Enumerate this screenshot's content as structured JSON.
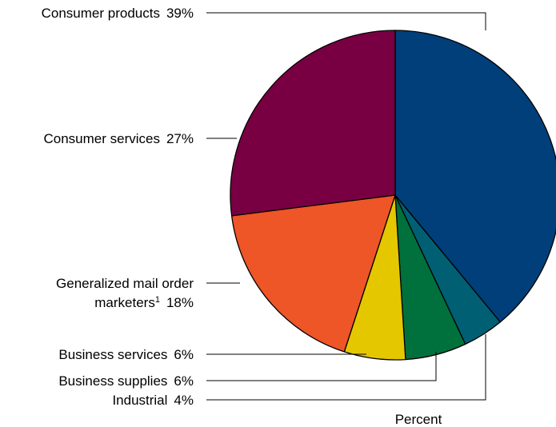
{
  "chart_data": {
    "type": "pie",
    "title": "",
    "footer_label": "Percent",
    "start_angle_deg": 0,
    "direction": "clockwise",
    "slices": [
      {
        "label": "Consumer products",
        "value": 39,
        "display": "39%",
        "color": "#003f7a"
      },
      {
        "label": "Industrial",
        "value": 4,
        "display": "4%",
        "color": "#005f73"
      },
      {
        "label": "Business supplies",
        "value": 6,
        "display": "6%",
        "color": "#00703c"
      },
      {
        "label": "Business services",
        "value": 6,
        "display": "6%",
        "color": "#e5c700"
      },
      {
        "label": "Generalized mail order marketers",
        "footnote": "1",
        "value": 18,
        "display": "18%",
        "color": "#ee5527"
      },
      {
        "label": "Consumer services",
        "value": 27,
        "display": "27%",
        "color": "#780042"
      }
    ]
  }
}
